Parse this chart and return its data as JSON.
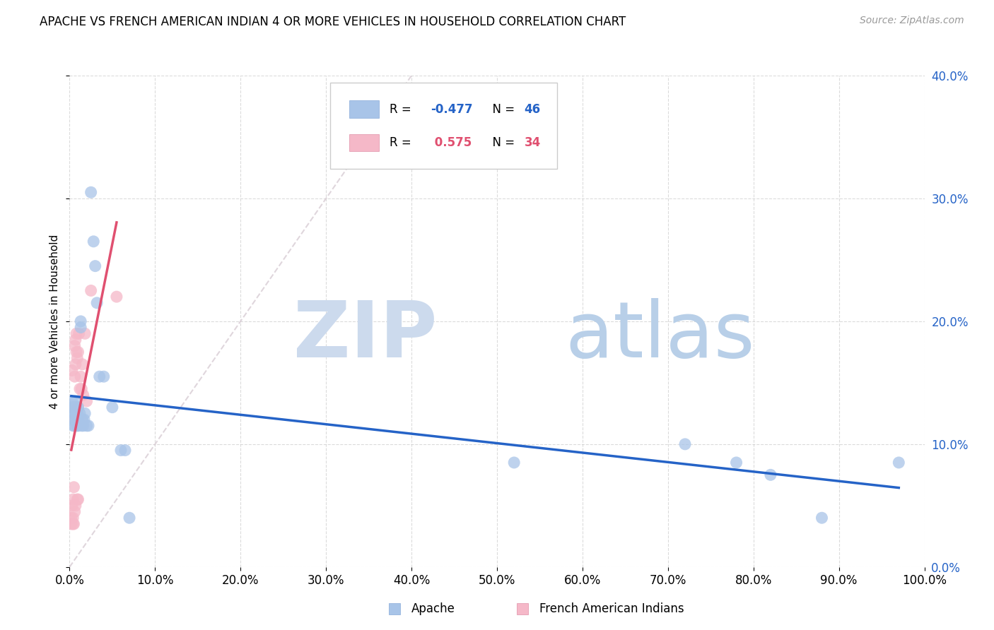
{
  "title": "APACHE VS FRENCH AMERICAN INDIAN 4 OR MORE VEHICLES IN HOUSEHOLD CORRELATION CHART",
  "source": "Source: ZipAtlas.com",
  "ylabel": "4 or more Vehicles in Household",
  "legend_apache": "Apache",
  "legend_french": "French American Indians",
  "apache_R": -0.477,
  "apache_N": 46,
  "french_R": 0.575,
  "french_N": 34,
  "xlim": [
    0.0,
    1.0
  ],
  "ylim": [
    0.0,
    0.4
  ],
  "xticks": [
    0.0,
    0.1,
    0.2,
    0.3,
    0.4,
    0.5,
    0.6,
    0.7,
    0.8,
    0.9,
    1.0
  ],
  "yticks": [
    0.0,
    0.1,
    0.2,
    0.3,
    0.4
  ],
  "apache_color": "#a8c4e8",
  "french_color": "#f5b8c8",
  "apache_line_color": "#2563c7",
  "french_line_color": "#e05070",
  "diagonal_color": "#d8ccd4",
  "apache_x": [
    0.002,
    0.003,
    0.004,
    0.004,
    0.005,
    0.005,
    0.006,
    0.006,
    0.007,
    0.007,
    0.007,
    0.008,
    0.008,
    0.008,
    0.009,
    0.009,
    0.01,
    0.01,
    0.01,
    0.011,
    0.012,
    0.013,
    0.013,
    0.014,
    0.015,
    0.016,
    0.017,
    0.018,
    0.02,
    0.022,
    0.025,
    0.028,
    0.03,
    0.032,
    0.035,
    0.04,
    0.05,
    0.06,
    0.065,
    0.07,
    0.52,
    0.72,
    0.78,
    0.82,
    0.88,
    0.97
  ],
  "apache_y": [
    0.13,
    0.135,
    0.125,
    0.115,
    0.13,
    0.12,
    0.125,
    0.115,
    0.135,
    0.13,
    0.12,
    0.125,
    0.118,
    0.13,
    0.115,
    0.125,
    0.13,
    0.12,
    0.115,
    0.118,
    0.125,
    0.195,
    0.2,
    0.115,
    0.12,
    0.115,
    0.12,
    0.125,
    0.115,
    0.115,
    0.305,
    0.265,
    0.245,
    0.215,
    0.155,
    0.155,
    0.13,
    0.095,
    0.095,
    0.04,
    0.085,
    0.1,
    0.085,
    0.075,
    0.04,
    0.085
  ],
  "french_x": [
    0.002,
    0.002,
    0.003,
    0.003,
    0.004,
    0.004,
    0.004,
    0.005,
    0.005,
    0.005,
    0.005,
    0.006,
    0.006,
    0.006,
    0.007,
    0.007,
    0.007,
    0.008,
    0.008,
    0.009,
    0.009,
    0.01,
    0.01,
    0.01,
    0.011,
    0.012,
    0.013,
    0.014,
    0.015,
    0.016,
    0.018,
    0.02,
    0.025,
    0.055
  ],
  "french_y": [
    0.04,
    0.035,
    0.16,
    0.05,
    0.055,
    0.04,
    0.035,
    0.12,
    0.065,
    0.13,
    0.035,
    0.18,
    0.155,
    0.045,
    0.185,
    0.165,
    0.05,
    0.175,
    0.19,
    0.17,
    0.055,
    0.175,
    0.13,
    0.055,
    0.19,
    0.145,
    0.155,
    0.145,
    0.165,
    0.14,
    0.19,
    0.135,
    0.225,
    0.22
  ]
}
